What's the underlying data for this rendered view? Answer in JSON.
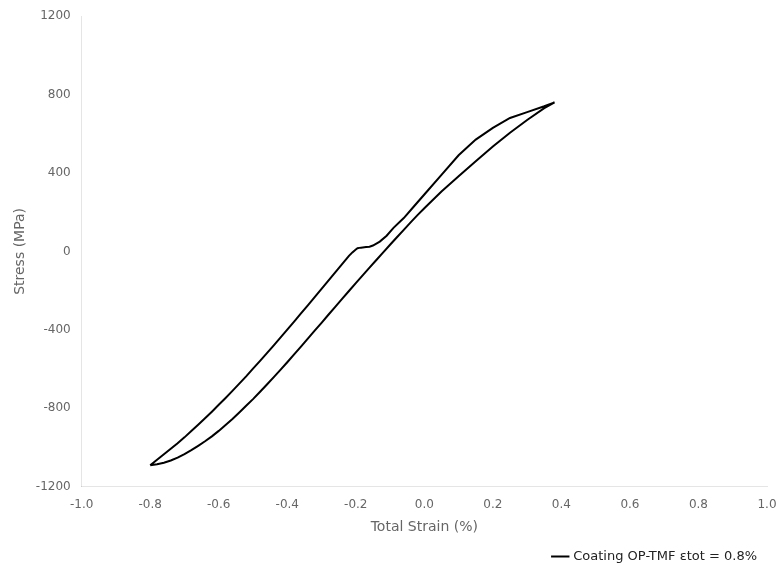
{
  "chart_data": {
    "type": "line",
    "xlabel": "Total Strain (%)",
    "ylabel": "Stress (MPa)",
    "xlim": [
      -1.0,
      1.0
    ],
    "ylim": [
      -1200,
      1200
    ],
    "xticks": [
      {
        "value": -1.0,
        "label": "-1.0"
      },
      -0.8,
      -0.6,
      -0.4,
      -0.2,
      {
        "value": 0.0,
        "label": "0.0"
      },
      0.2,
      0.4,
      0.6,
      0.8,
      {
        "value": 1.0,
        "label": "1.0"
      }
    ],
    "yticks": [
      -1200,
      -800,
      -400,
      0,
      400,
      800,
      1200
    ],
    "grid": false,
    "legend": "lower right",
    "x": [
      -0.8,
      -0.78,
      -0.76,
      -0.74,
      -0.72,
      -0.7,
      -0.68,
      -0.66,
      -0.64,
      -0.62,
      -0.6,
      -0.58,
      -0.56,
      -0.54,
      -0.52,
      -0.5,
      -0.48,
      -0.46,
      -0.44,
      -0.42,
      -0.4,
      -0.38,
      -0.36,
      -0.34,
      -0.32,
      -0.3,
      -0.28,
      -0.26,
      -0.24,
      -0.22,
      -0.21,
      -0.2,
      -0.195,
      -0.19,
      -0.185,
      -0.18,
      -0.175,
      -0.17,
      -0.16,
      -0.15,
      -0.13,
      -0.11,
      -0.09,
      -0.06,
      -0.03,
      0.0,
      0.05,
      0.1,
      0.15,
      0.2,
      0.25,
      0.3,
      0.35,
      0.38,
      0.38,
      0.35,
      0.3,
      0.25,
      0.2,
      0.15,
      0.1,
      0.05,
      0.0,
      -0.02,
      -0.04,
      -0.06,
      -0.08,
      -0.1,
      -0.12,
      -0.14,
      -0.16,
      -0.18,
      -0.2,
      -0.22,
      -0.24,
      -0.26,
      -0.28,
      -0.3,
      -0.32,
      -0.34,
      -0.36,
      -0.38,
      -0.4,
      -0.42,
      -0.44,
      -0.46,
      -0.48,
      -0.5,
      -0.52,
      -0.54,
      -0.56,
      -0.58,
      -0.6,
      -0.62,
      -0.64,
      -0.66,
      -0.68,
      -0.7,
      -0.72,
      -0.74,
      -0.76,
      -0.78,
      -0.8
    ],
    "series": [
      {
        "name": "Coating OP-TMF εtot = 0.8%",
        "color": "#000000",
        "values": [
          -1090,
          -1062,
          -1034,
          -1006,
          -978,
          -948,
          -916,
          -884,
          -851,
          -817,
          -782,
          -747,
          -711,
          -674,
          -637,
          -598,
          -559,
          -520,
          -480,
          -440,
          -399,
          -358,
          -316,
          -275,
          -233,
          -191,
          -149,
          -107,
          -65,
          -23,
          -5,
          10,
          16,
          18,
          19,
          20,
          21,
          22,
          24,
          30,
          50,
          80,
          120,
          170,
          230,
          290,
          390,
          490,
          570,
          630,
          680,
          710,
          740,
          760,
          760,
          730,
          670,
          605,
          535,
          460,
          383,
          305,
          220,
          185,
          148,
          110,
          72,
          34,
          -5,
          -44,
          -83,
          -122,
          -162,
          -202,
          -242,
          -283,
          -323,
          -364,
          -404,
          -445,
          -485,
          -525,
          -565,
          -604,
          -642,
          -680,
          -717,
          -753,
          -787,
          -821,
          -854,
          -885,
          -915,
          -943,
          -968,
          -991,
          -1013,
          -1033,
          -1051,
          -1066,
          -1077,
          -1085,
          -1090
        ]
      }
    ]
  }
}
